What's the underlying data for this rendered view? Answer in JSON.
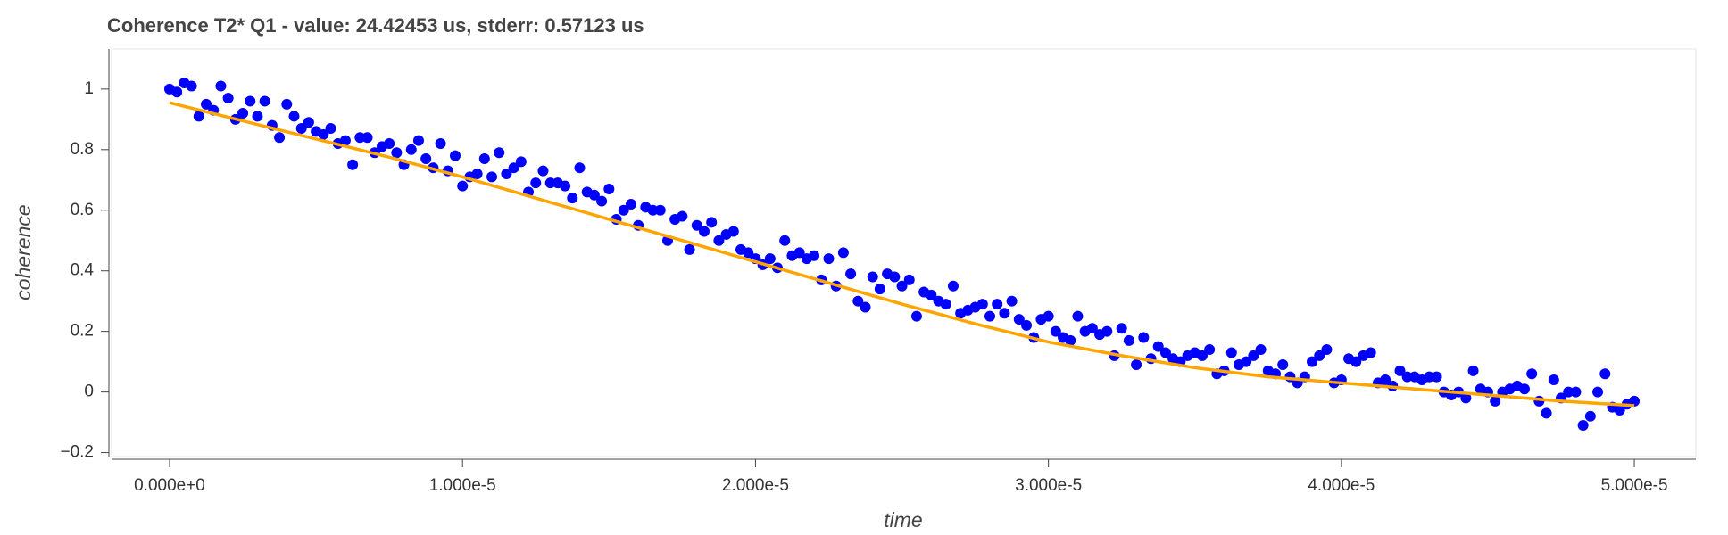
{
  "chart_data": {
    "type": "scatter",
    "title": "Coherence T2* Q1 - value: 24.42453 us, stderr: 0.57123 us",
    "x_label": "time",
    "y_label": "coherence",
    "xlim": [
      -1.98e-06,
      5.21e-05
    ],
    "ylim": [
      -0.213,
      1.132
    ],
    "xticks": [
      {
        "value": 0,
        "label": "0.000e+0"
      },
      {
        "value": 1e-05,
        "label": "1.000e-5"
      },
      {
        "value": 2e-05,
        "label": "2.000e-5"
      },
      {
        "value": 3e-05,
        "label": "3.000e-5"
      },
      {
        "value": 4e-05,
        "label": "4.000e-5"
      },
      {
        "value": 5e-05,
        "label": "5.000e-5"
      }
    ],
    "yticks": [
      {
        "value": -0.2,
        "label": "−0.2"
      },
      0,
      0.2,
      0.4,
      0.6,
      0.8,
      1
    ],
    "series": [
      {
        "kind": "scatter",
        "color": "#0000ff",
        "x": [
          0,
          2.5e-07,
          5e-07,
          7.5e-07,
          1e-06,
          1.25e-06,
          1.5e-06,
          1.75e-06,
          2e-06,
          2.25e-06,
          2.5e-06,
          2.75e-06,
          3e-06,
          3.25e-06,
          3.5e-06,
          3.75e-06,
          4e-06,
          4.25e-06,
          4.5e-06,
          4.75e-06,
          5e-06,
          5.25e-06,
          5.5e-06,
          5.75e-06,
          6e-06,
          6.25e-06,
          6.5e-06,
          6.75e-06,
          7e-06,
          7.25e-06,
          7.5e-06,
          7.75e-06,
          8e-06,
          8.25e-06,
          8.5e-06,
          8.75e-06,
          9e-06,
          9.25e-06,
          9.5e-06,
          9.75e-06,
          1e-05,
          1.025e-05,
          1.05e-05,
          1.075e-05,
          1.1e-05,
          1.125e-05,
          1.15e-05,
          1.175e-05,
          1.2e-05,
          1.225e-05,
          1.25e-05,
          1.275e-05,
          1.3e-05,
          1.325e-05,
          1.35e-05,
          1.375e-05,
          1.4e-05,
          1.425e-05,
          1.45e-05,
          1.475e-05,
          1.5e-05,
          1.525e-05,
          1.55e-05,
          1.575e-05,
          1.6e-05,
          1.625e-05,
          1.65e-05,
          1.675e-05,
          1.7e-05,
          1.725e-05,
          1.75e-05,
          1.775e-05,
          1.8e-05,
          1.825e-05,
          1.85e-05,
          1.875e-05,
          1.9e-05,
          1.925e-05,
          1.95e-05,
          1.975e-05,
          2e-05,
          2.025e-05,
          2.05e-05,
          2.075e-05,
          2.1e-05,
          2.125e-05,
          2.15e-05,
          2.175e-05,
          2.2e-05,
          2.225e-05,
          2.25e-05,
          2.275e-05,
          2.3e-05,
          2.325e-05,
          2.35e-05,
          2.375e-05,
          2.4e-05,
          2.425e-05,
          2.45e-05,
          2.475e-05,
          2.5e-05,
          2.525e-05,
          2.55e-05,
          2.575e-05,
          2.6e-05,
          2.625e-05,
          2.65e-05,
          2.675e-05,
          2.7e-05,
          2.725e-05,
          2.75e-05,
          2.775e-05,
          2.8e-05,
          2.825e-05,
          2.85e-05,
          2.875e-05,
          2.9e-05,
          2.925e-05,
          2.95e-05,
          2.975e-05,
          3e-05,
          3.025e-05,
          3.05e-05,
          3.075e-05,
          3.1e-05,
          3.125e-05,
          3.15e-05,
          3.175e-05,
          3.2e-05,
          3.225e-05,
          3.25e-05,
          3.275e-05,
          3.3e-05,
          3.325e-05,
          3.35e-05,
          3.375e-05,
          3.4e-05,
          3.425e-05,
          3.45e-05,
          3.475e-05,
          3.5e-05,
          3.525e-05,
          3.55e-05,
          3.575e-05,
          3.6e-05,
          3.625e-05,
          3.65e-05,
          3.675e-05,
          3.7e-05,
          3.725e-05,
          3.75e-05,
          3.775e-05,
          3.8e-05,
          3.825e-05,
          3.85e-05,
          3.875e-05,
          3.9e-05,
          3.925e-05,
          3.95e-05,
          3.975e-05,
          4e-05,
          4.025e-05,
          4.05e-05,
          4.075e-05,
          4.1e-05,
          4.125e-05,
          4.15e-05,
          4.175e-05,
          4.2e-05,
          4.225e-05,
          4.25e-05,
          4.275e-05,
          4.3e-05,
          4.325e-05,
          4.35e-05,
          4.375e-05,
          4.4e-05,
          4.425e-05,
          4.45e-05,
          4.475e-05,
          4.5e-05,
          4.525e-05,
          4.55e-05,
          4.575e-05,
          4.6e-05,
          4.625e-05,
          4.65e-05,
          4.675e-05,
          4.7e-05,
          4.725e-05,
          4.75e-05,
          4.775e-05,
          4.8e-05,
          4.825e-05,
          4.85e-05,
          4.875e-05,
          4.9e-05,
          4.925e-05,
          4.95e-05,
          4.975e-05,
          5e-05
        ],
        "values": [
          1.0,
          0.99,
          1.02,
          1.01,
          0.91,
          0.95,
          0.93,
          1.01,
          0.97,
          0.9,
          0.92,
          0.96,
          0.91,
          0.96,
          0.88,
          0.84,
          0.95,
          0.91,
          0.87,
          0.89,
          0.86,
          0.85,
          0.87,
          0.82,
          0.83,
          0.75,
          0.84,
          0.84,
          0.79,
          0.81,
          0.82,
          0.79,
          0.75,
          0.8,
          0.83,
          0.77,
          0.74,
          0.82,
          0.73,
          0.78,
          0.68,
          0.71,
          0.72,
          0.77,
          0.71,
          0.79,
          0.72,
          0.74,
          0.76,
          0.66,
          0.69,
          0.73,
          0.69,
          0.69,
          0.68,
          0.64,
          0.74,
          0.66,
          0.65,
          0.63,
          0.67,
          0.57,
          0.6,
          0.62,
          0.55,
          0.61,
          0.6,
          0.6,
          0.5,
          0.57,
          0.58,
          0.47,
          0.55,
          0.53,
          0.56,
          0.5,
          0.52,
          0.53,
          0.47,
          0.46,
          0.44,
          0.42,
          0.44,
          0.41,
          0.5,
          0.45,
          0.46,
          0.44,
          0.45,
          0.37,
          0.44,
          0.35,
          0.46,
          0.39,
          0.3,
          0.28,
          0.38,
          0.34,
          0.39,
          0.38,
          0.35,
          0.37,
          0.25,
          0.33,
          0.32,
          0.3,
          0.29,
          0.35,
          0.26,
          0.27,
          0.28,
          0.29,
          0.25,
          0.29,
          0.26,
          0.3,
          0.24,
          0.22,
          0.18,
          0.24,
          0.25,
          0.2,
          0.18,
          0.17,
          0.25,
          0.2,
          0.21,
          0.19,
          0.2,
          0.12,
          0.21,
          0.17,
          0.09,
          0.18,
          0.11,
          0.15,
          0.13,
          0.11,
          0.1,
          0.12,
          0.13,
          0.12,
          0.14,
          0.06,
          0.07,
          0.13,
          0.09,
          0.1,
          0.12,
          0.14,
          0.07,
          0.06,
          0.09,
          0.05,
          0.03,
          0.05,
          0.1,
          0.12,
          0.14,
          0.03,
          0.04,
          0.11,
          0.1,
          0.12,
          0.13,
          0.03,
          0.04,
          0.02,
          0.07,
          0.05,
          0.05,
          0.04,
          0.05,
          0.05,
          0.0,
          -0.01,
          0.0,
          -0.02,
          0.07,
          0.01,
          0.0,
          -0.03,
          0.0,
          0.01,
          0.02,
          0.01,
          0.06,
          -0.03,
          -0.07,
          0.04,
          -0.02,
          0.0,
          0.0,
          -0.11,
          -0.08,
          0.0,
          0.06,
          -0.05,
          -0.06,
          -0.04,
          -0.03
        ]
      },
      {
        "kind": "line",
        "color": "#ffa500",
        "x": [
          0,
          2.5e-06,
          5e-06,
          7.5e-06,
          1e-05,
          1.25e-05,
          1.5e-05,
          1.75e-05,
          2e-05,
          2.25e-05,
          2.5e-05,
          2.75e-05,
          3e-05,
          3.25e-05,
          3.5e-05,
          3.75e-05,
          4e-05,
          4.25e-05,
          4.5e-05,
          4.75e-05,
          5e-05
        ],
        "values": [
          0.955,
          0.895,
          0.835,
          0.775,
          0.71,
          0.64,
          0.57,
          0.5,
          0.43,
          0.36,
          0.29,
          0.225,
          0.165,
          0.12,
          0.08,
          0.05,
          0.03,
          0.01,
          -0.01,
          -0.03,
          -0.045
        ]
      }
    ]
  }
}
